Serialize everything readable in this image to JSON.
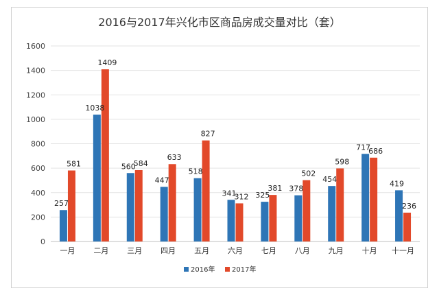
{
  "chart_data": {
    "type": "bar",
    "title": "2016与2017年兴化市区商品房成交量对比（套）",
    "categories": [
      "一月",
      "二月",
      "三月",
      "四月",
      "五月",
      "六月",
      "七月",
      "八月",
      "九月",
      "十月",
      "十一月"
    ],
    "series": [
      {
        "name": "2016年",
        "color": "#2e75b6",
        "values": [
          257,
          1038,
          560,
          447,
          518,
          341,
          325,
          378,
          454,
          717,
          419
        ]
      },
      {
        "name": "2017年",
        "color": "#e2492a",
        "values": [
          581,
          1409,
          584,
          633,
          827,
          312,
          381,
          502,
          598,
          686,
          236
        ]
      }
    ],
    "ylim": [
      0,
      1600
    ],
    "yticks": [
      0,
      200,
      400,
      600,
      800,
      1000,
      1200,
      1400,
      1600
    ],
    "grid": true,
    "legend": "bottom",
    "data_labels": true
  }
}
